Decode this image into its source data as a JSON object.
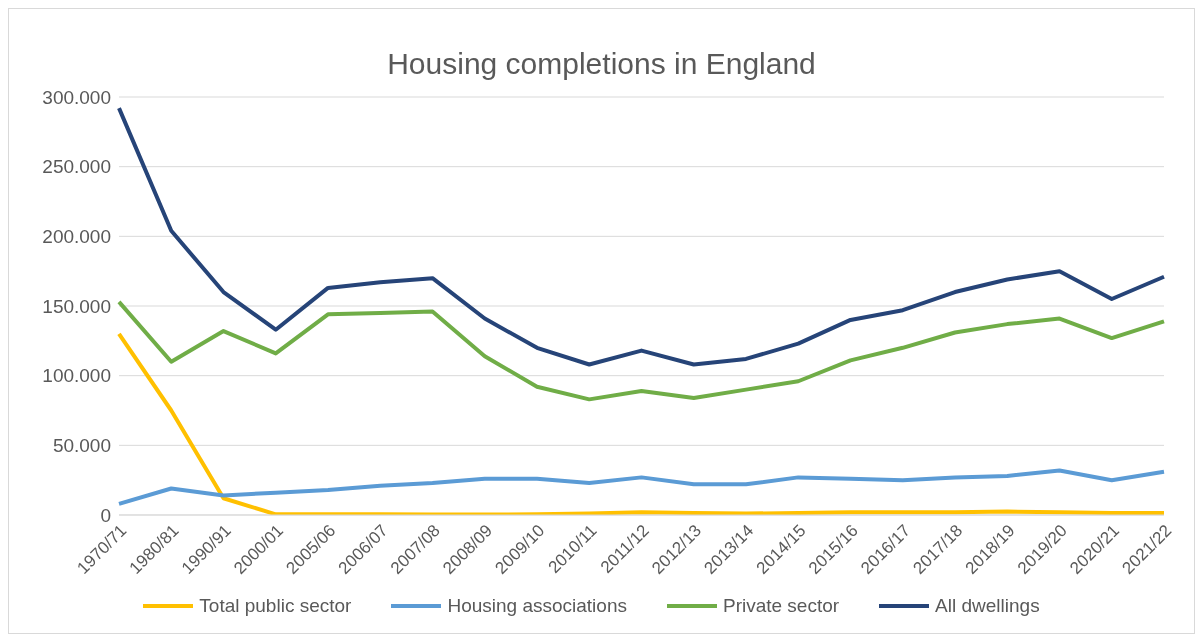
{
  "chart_data": {
    "type": "line",
    "title": "Housing completions in England",
    "categories": [
      "1970/71",
      "1980/81",
      "1990/91",
      "2000/01",
      "2005/06",
      "2006/07",
      "2007/08",
      "2008/09",
      "2009/10",
      "2010/11",
      "2011/12",
      "2012/13",
      "2013/14",
      "2014/15",
      "2015/16",
      "2016/17",
      "2017/18",
      "2018/19",
      "2019/20",
      "2020/21",
      "2021/22"
    ],
    "series": [
      {
        "name": "Total public sector",
        "color": "#ffc000",
        "values": [
          130000,
          75000,
          12000,
          500,
          500,
          500,
          300,
          400,
          500,
          1000,
          2000,
          1500,
          1000,
          1500,
          2000,
          2000,
          2000,
          2500,
          2000,
          1500,
          1500
        ]
      },
      {
        "name": "Housing associations",
        "color": "#5b9bd5",
        "values": [
          8000,
          19000,
          14000,
          16000,
          18000,
          21000,
          23000,
          26000,
          26000,
          23000,
          27000,
          22000,
          22000,
          27000,
          26000,
          25000,
          27000,
          28000,
          32000,
          25000,
          31000
        ]
      },
      {
        "name": "Private sector",
        "color": "#70ad47",
        "values": [
          153000,
          110000,
          132000,
          116000,
          144000,
          145000,
          146000,
          114000,
          92000,
          83000,
          89000,
          84000,
          90000,
          96000,
          111000,
          120000,
          131000,
          137000,
          141000,
          127000,
          139000
        ]
      },
      {
        "name": "All dwellings",
        "color": "#264478",
        "values": [
          292000,
          204000,
          160000,
          133000,
          163000,
          167000,
          170000,
          141000,
          120000,
          108000,
          118000,
          108000,
          112000,
          123000,
          140000,
          147000,
          160000,
          169000,
          175000,
          155000,
          171000
        ]
      }
    ],
    "ylim": [
      0,
      300000
    ],
    "yticks": [
      {
        "value": 0,
        "label": "0"
      },
      {
        "value": 50000,
        "label": "50.000"
      },
      {
        "value": 100000,
        "label": "100.000"
      },
      {
        "value": 150000,
        "label": "150.000"
      },
      {
        "value": 200000,
        "label": "200.000"
      },
      {
        "value": 250000,
        "label": "250.000"
      },
      {
        "value": 300000,
        "label": "300.000"
      }
    ],
    "grid": "y",
    "legend": "bottom",
    "marker": "none",
    "line_style": "solid"
  }
}
